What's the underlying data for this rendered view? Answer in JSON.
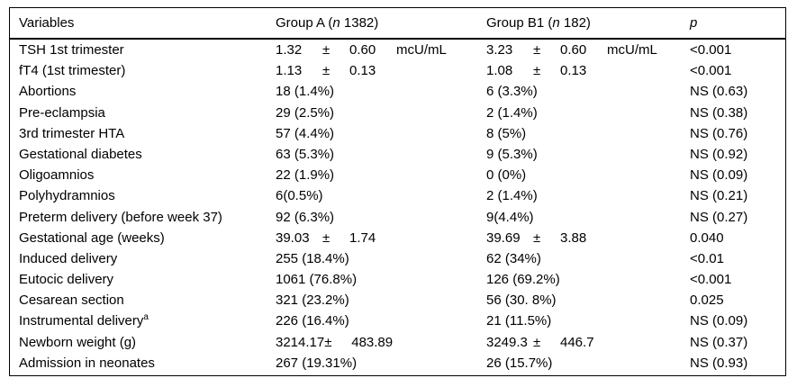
{
  "table": {
    "headers": [
      {
        "pre": "Variables"
      },
      {
        "pre": "Group A (",
        "italic": "n",
        "post": " 1382)"
      },
      {
        "pre": "Group B1 (",
        "italic": "n",
        "post": " 182)"
      },
      {
        "italic": "p"
      }
    ],
    "rows": [
      {
        "label": "TSH 1st trimester",
        "a": {
          "mean": "1.32",
          "pm": "±",
          "sd": "0.60",
          "unit": "mcU/mL"
        },
        "b": {
          "mean": "3.23",
          "pm": "±",
          "sd": "0.60",
          "unit": "mcU/mL"
        },
        "p": "<0.001"
      },
      {
        "label": "fT4 (1st trimester)",
        "a": {
          "mean": "1.13",
          "pm": "±",
          "sd": "0.13"
        },
        "b": {
          "mean": "1.08",
          "pm": "±",
          "sd": "0.13"
        },
        "p": "<0.001"
      },
      {
        "label": "Abortions",
        "a": {
          "text": "18 (1.4%)"
        },
        "b": {
          "text": "6 (3.3%)"
        },
        "p": "NS (0.63)"
      },
      {
        "label": "Pre-eclampsia",
        "a": {
          "text": "29 (2.5%)"
        },
        "b": {
          "text": "2 (1.4%)"
        },
        "p": "NS (0.38)"
      },
      {
        "label": "3rd trimester HTA",
        "a": {
          "text": "57 (4.4%)"
        },
        "b": {
          "text": "8 (5%)"
        },
        "p": "NS (0.76)"
      },
      {
        "label": "Gestational diabetes",
        "a": {
          "text": "63 (5.3%)"
        },
        "b": {
          "text": "9 (5.3%)"
        },
        "p": "NS (0.92)"
      },
      {
        "label": "Oligoamnios",
        "a": {
          "text": "22 (1.9%)"
        },
        "b": {
          "text": "0 (0%)"
        },
        "p": "NS (0.09)"
      },
      {
        "label": "Polyhydramnios",
        "a": {
          "text": "6(0.5%)"
        },
        "b": {
          "text": "2 (1.4%)"
        },
        "p": "NS (0.21)"
      },
      {
        "label": "Preterm delivery (before week 37)",
        "a": {
          "text": "92 (6.3%)"
        },
        "b": {
          "text": "9(4.4%)"
        },
        "p": "NS (0.27)"
      },
      {
        "label": "Gestational age (weeks)",
        "a": {
          "mean": "39.03",
          "pm": "±",
          "sd": "1.74"
        },
        "b": {
          "mean": "39.69",
          "pm": "±",
          "sd": "3.88"
        },
        "p": "0.040"
      },
      {
        "label": "Induced delivery",
        "a": {
          "text": "255 (18.4%)"
        },
        "b": {
          "text": "62 (34%)"
        },
        "p": "<0.01"
      },
      {
        "label": "Eutocic delivery",
        "a": {
          "text": "1061 (76.8%)"
        },
        "b": {
          "text": "126 (69.2%)"
        },
        "p": "<0.001"
      },
      {
        "label": "Cesarean section",
        "a": {
          "text": "321 (23.2%)"
        },
        "b": {
          "text": "56 (30. 8%)"
        },
        "p": "0.025"
      },
      {
        "label": "Instrumental delivery",
        "sup": "a",
        "a": {
          "text": "226 (16.4%)"
        },
        "b": {
          "text": "21 (11.5%)"
        },
        "p": "NS (0.09)"
      },
      {
        "label": "Newborn weight (g)",
        "a": {
          "mean": "3214.17",
          "pm": "±",
          "sd": "483.89"
        },
        "b": {
          "mean": "3249.3",
          "pm": "±",
          "sd": "446.7"
        },
        "p": "NS (0.37)"
      },
      {
        "label": "Admission in neonates",
        "a": {
          "text": "267 (19.31%)"
        },
        "b": {
          "text": "26 (15.7%)"
        },
        "p": "NS (0.93)"
      }
    ]
  }
}
